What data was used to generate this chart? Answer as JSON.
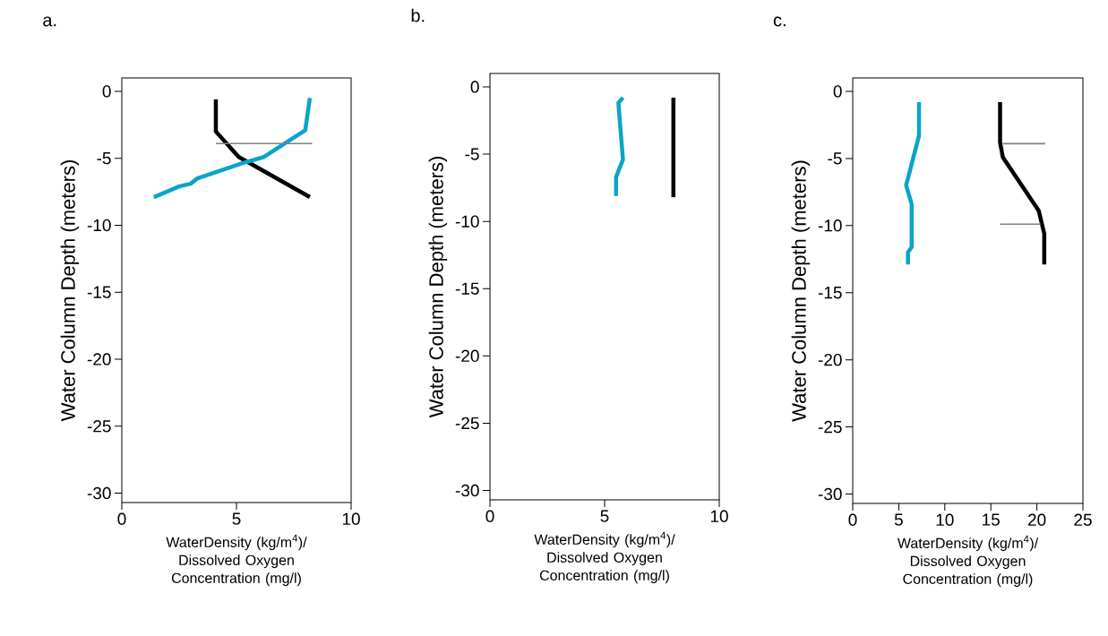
{
  "chart_data": [
    {
      "type": "line",
      "title": "a.",
      "xlabel": "WaterDensity (kg/m$^{4}$)/ Dissolved Oxygen Concentration (mg/l)",
      "ylabel": "Water Column Depth (meters)",
      "xlim": [
        0,
        10
      ],
      "ylim": [
        -30.7,
        1
      ],
      "xticks": [
        0,
        5,
        10
      ],
      "yticks": [
        0,
        -5,
        -10,
        -15,
        -20,
        -25,
        -30
      ],
      "series": [
        {
          "color": "#000000",
          "x": [
            4.1,
            4.1,
            5.1,
            8.2
          ],
          "values": [
            -0.6,
            -3,
            -4.9,
            -7.9
          ]
        },
        {
          "color": "#0aa4c8",
          "x": [
            8.2,
            8.0,
            6.2,
            5.2,
            3.3,
            3.0,
            2.5,
            1.4
          ],
          "values": [
            -0.5,
            -2.9,
            -4.9,
            -5.4,
            -6.5,
            -6.9,
            -7.1,
            -7.9
          ]
        },
        {
          "color": "#808080",
          "x": [
            4.1,
            8.3
          ],
          "values": [
            -3.9,
            -3.9
          ]
        }
      ]
    },
    {
      "type": "line",
      "title": "b.",
      "xlabel": "WaterDensity (kg/m$^{4}$)/ Dissolved Oxygen Concentration (mg/l)",
      "ylabel": "Water Column Depth (meters)",
      "xlim": [
        0,
        10
      ],
      "ylim": [
        -30.7,
        1
      ],
      "xticks": [
        0,
        5,
        10
      ],
      "yticks": [
        0,
        -5,
        -10,
        -15,
        -20,
        -25,
        -30
      ],
      "series": [
        {
          "color": "#0aa4c8",
          "x": [
            5.8,
            5.6,
            5.8,
            5.5,
            5.5
          ],
          "values": [
            -0.8,
            -1.2,
            -5.4,
            -6.7,
            -8.1
          ]
        },
        {
          "color": "#000000",
          "x": [
            8.0,
            8.0
          ],
          "values": [
            -0.8,
            -8.2
          ]
        }
      ]
    },
    {
      "type": "line",
      "title": "c.",
      "xlabel": "WaterDensity (kg/m$^{4}$)/ Dissolved Oxygen Concentration (mg/l)",
      "ylabel": "Water Column Depth (meters)",
      "xlim": [
        0,
        25
      ],
      "ylim": [
        -30.7,
        1
      ],
      "xticks": [
        0,
        5,
        10,
        15,
        20,
        25
      ],
      "yticks": [
        0,
        -5,
        -10,
        -15,
        -20,
        -25,
        -30
      ],
      "series": [
        {
          "color": "#0aa4c8",
          "x": [
            7.2,
            7.2,
            5.8,
            6.4,
            6.4,
            6.0,
            6.0
          ],
          "values": [
            -0.8,
            -3.3,
            -7.0,
            -8.4,
            -11.6,
            -12.0,
            -12.9
          ]
        },
        {
          "color": "#000000",
          "x": [
            16.0,
            16.0,
            16.3,
            20.2,
            20.8,
            20.8
          ],
          "values": [
            -0.8,
            -3.8,
            -4.9,
            -8.9,
            -10.6,
            -12.9
          ]
        },
        {
          "color": "#808080",
          "x": [
            16.3,
            20.9
          ],
          "values": [
            -3.9,
            -3.9
          ]
        },
        {
          "color": "#808080",
          "x": [
            16.0,
            20.4
          ],
          "values": [
            -9.9,
            -9.9
          ]
        }
      ]
    }
  ]
}
